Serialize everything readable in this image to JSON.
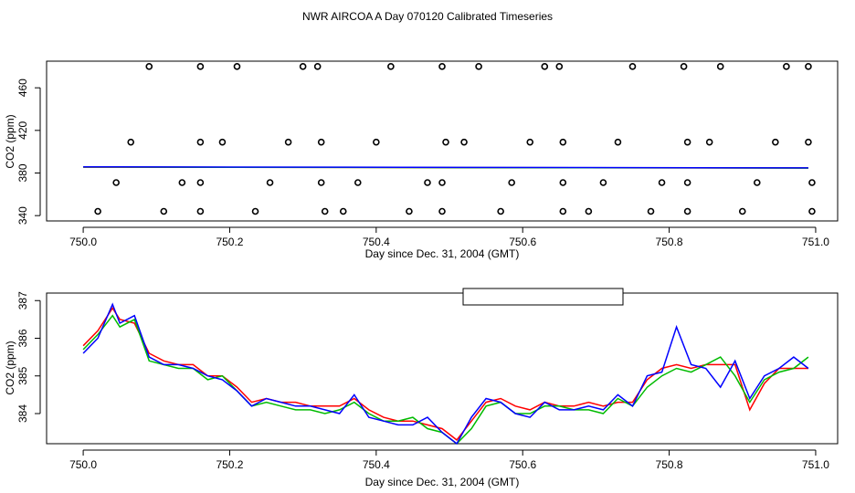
{
  "title": "NWR AIRCOA A  Day 070120  Calibrated Timeseries",
  "chart_data": [
    {
      "type": "scatter+line",
      "xlabel": "Day since Dec. 31, 2004 (GMT)",
      "ylabel": "CO2 (ppm)",
      "xlim": [
        749.95,
        751.03
      ],
      "ylim": [
        335,
        485
      ],
      "xticks": [
        750.0,
        750.2,
        750.4,
        750.6,
        750.8,
        751.0
      ],
      "xtick_labels": [
        "750.0",
        "750.2",
        "750.4",
        "750.6",
        "750.8",
        "751.0"
      ],
      "yticks": [
        340,
        380,
        420,
        460
      ],
      "ytick_labels": [
        "340",
        "380",
        "420",
        "460"
      ],
      "reference_points": [
        {
          "x": 750.09,
          "y": 480
        },
        {
          "x": 750.16,
          "y": 480
        },
        {
          "x": 750.21,
          "y": 480
        },
        {
          "x": 750.3,
          "y": 480
        },
        {
          "x": 750.32,
          "y": 480
        },
        {
          "x": 750.42,
          "y": 480
        },
        {
          "x": 750.49,
          "y": 480
        },
        {
          "x": 750.54,
          "y": 480
        },
        {
          "x": 750.63,
          "y": 480
        },
        {
          "x": 750.65,
          "y": 480
        },
        {
          "x": 750.75,
          "y": 480
        },
        {
          "x": 750.82,
          "y": 480
        },
        {
          "x": 750.87,
          "y": 480
        },
        {
          "x": 750.96,
          "y": 480
        },
        {
          "x": 750.99,
          "y": 480
        },
        {
          "x": 750.065,
          "y": 409
        },
        {
          "x": 750.16,
          "y": 409
        },
        {
          "x": 750.19,
          "y": 409
        },
        {
          "x": 750.28,
          "y": 409
        },
        {
          "x": 750.325,
          "y": 409
        },
        {
          "x": 750.4,
          "y": 409
        },
        {
          "x": 750.495,
          "y": 409
        },
        {
          "x": 750.52,
          "y": 409
        },
        {
          "x": 750.61,
          "y": 409
        },
        {
          "x": 750.655,
          "y": 409
        },
        {
          "x": 750.73,
          "y": 409
        },
        {
          "x": 750.825,
          "y": 409
        },
        {
          "x": 750.855,
          "y": 409
        },
        {
          "x": 750.945,
          "y": 409
        },
        {
          "x": 750.99,
          "y": 409
        },
        {
          "x": 750.045,
          "y": 371
        },
        {
          "x": 750.135,
          "y": 371
        },
        {
          "x": 750.16,
          "y": 371
        },
        {
          "x": 750.255,
          "y": 371
        },
        {
          "x": 750.325,
          "y": 371
        },
        {
          "x": 750.375,
          "y": 371
        },
        {
          "x": 750.47,
          "y": 371
        },
        {
          "x": 750.49,
          "y": 371
        },
        {
          "x": 750.585,
          "y": 371
        },
        {
          "x": 750.655,
          "y": 371
        },
        {
          "x": 750.71,
          "y": 371
        },
        {
          "x": 750.79,
          "y": 371
        },
        {
          "x": 750.825,
          "y": 371
        },
        {
          "x": 750.92,
          "y": 371
        },
        {
          "x": 750.995,
          "y": 371
        },
        {
          "x": 750.02,
          "y": 344
        },
        {
          "x": 750.11,
          "y": 344
        },
        {
          "x": 750.16,
          "y": 344
        },
        {
          "x": 750.235,
          "y": 344
        },
        {
          "x": 750.33,
          "y": 344
        },
        {
          "x": 750.355,
          "y": 344
        },
        {
          "x": 750.445,
          "y": 344
        },
        {
          "x": 750.49,
          "y": 344
        },
        {
          "x": 750.57,
          "y": 344
        },
        {
          "x": 750.655,
          "y": 344
        },
        {
          "x": 750.69,
          "y": 344
        },
        {
          "x": 750.775,
          "y": 344
        },
        {
          "x": 750.825,
          "y": 344
        },
        {
          "x": 750.9,
          "y": 344
        },
        {
          "x": 750.995,
          "y": 344
        }
      ],
      "series": [
        {
          "name": "red",
          "color": "#ff0000",
          "x": [
            750.0,
            750.99
          ],
          "values": [
            385.5,
            384.7
          ]
        },
        {
          "name": "green",
          "color": "#00cc00",
          "x": [
            750.0,
            750.99
          ],
          "values": [
            385.6,
            384.6
          ]
        },
        {
          "name": "blue",
          "color": "#0000ff",
          "x": [
            750.0,
            750.99
          ],
          "values": [
            385.8,
            384.8
          ]
        }
      ]
    },
    {
      "type": "line",
      "xlabel": "Day since Dec. 31, 2004 (GMT)",
      "ylabel": "CO2 (ppm)",
      "xlim": [
        749.95,
        751.03
      ],
      "ylim": [
        383.2,
        387.2
      ],
      "xticks": [
        750.0,
        750.2,
        750.4,
        750.6,
        750.8,
        751.0
      ],
      "xtick_labels": [
        "750.0",
        "750.2",
        "750.4",
        "750.6",
        "750.8",
        "751.0"
      ],
      "yticks": [
        384,
        385,
        386,
        387
      ],
      "ytick_labels": [
        "384",
        "385",
        "386",
        "387"
      ],
      "legend_position": "top-center",
      "x": [
        750.0,
        750.02,
        750.04,
        750.05,
        750.07,
        750.09,
        750.11,
        750.13,
        750.15,
        750.17,
        750.19,
        750.21,
        750.23,
        750.25,
        750.27,
        750.29,
        750.31,
        750.33,
        750.35,
        750.37,
        750.39,
        750.41,
        750.43,
        750.45,
        750.47,
        750.49,
        750.51,
        750.53,
        750.55,
        750.57,
        750.59,
        750.61,
        750.63,
        750.65,
        750.67,
        750.69,
        750.71,
        750.73,
        750.75,
        750.77,
        750.79,
        750.81,
        750.83,
        750.85,
        750.87,
        750.89,
        750.91,
        750.93,
        750.95,
        750.97,
        750.99
      ],
      "series": [
        {
          "name": "red",
          "color": "#ff0000",
          "values": [
            385.8,
            386.2,
            386.8,
            386.5,
            386.4,
            385.6,
            385.4,
            385.3,
            385.3,
            385.0,
            385.0,
            384.7,
            384.3,
            384.4,
            384.3,
            384.3,
            384.2,
            384.2,
            384.2,
            384.4,
            384.1,
            383.9,
            383.8,
            383.8,
            383.7,
            383.6,
            383.3,
            383.8,
            384.3,
            384.4,
            384.2,
            384.1,
            384.3,
            384.2,
            384.2,
            384.3,
            384.2,
            384.3,
            384.3,
            384.9,
            385.2,
            385.3,
            385.2,
            385.3,
            385.3,
            385.3,
            384.1,
            384.8,
            385.2,
            385.2,
            385.2
          ]
        },
        {
          "name": "green",
          "color": "#00bb00",
          "values": [
            385.7,
            386.1,
            386.6,
            386.3,
            386.5,
            385.4,
            385.3,
            385.2,
            385.2,
            384.9,
            385.0,
            384.6,
            384.2,
            384.3,
            384.2,
            384.1,
            384.1,
            384.0,
            384.1,
            384.3,
            384.0,
            383.8,
            383.8,
            383.9,
            383.6,
            383.5,
            383.2,
            383.6,
            384.2,
            384.3,
            384.0,
            384.0,
            384.2,
            384.2,
            384.1,
            384.1,
            384.0,
            384.4,
            384.2,
            384.7,
            385.0,
            385.2,
            385.1,
            385.3,
            385.5,
            385.0,
            384.3,
            384.9,
            385.1,
            385.2,
            385.5
          ]
        },
        {
          "name": "blue",
          "color": "#0000ff",
          "values": [
            385.6,
            386.0,
            386.9,
            386.4,
            386.6,
            385.5,
            385.3,
            385.3,
            385.2,
            385.0,
            384.9,
            384.6,
            384.2,
            384.4,
            384.3,
            384.2,
            384.2,
            384.1,
            384.0,
            384.5,
            383.9,
            383.8,
            383.7,
            383.7,
            383.9,
            383.5,
            383.2,
            383.9,
            384.4,
            384.3,
            384.0,
            383.9,
            384.3,
            384.1,
            384.1,
            384.2,
            384.1,
            384.5,
            384.2,
            385.0,
            385.1,
            386.3,
            385.3,
            385.2,
            384.7,
            385.4,
            384.4,
            385.0,
            385.2,
            385.5,
            385.2
          ]
        }
      ]
    }
  ]
}
